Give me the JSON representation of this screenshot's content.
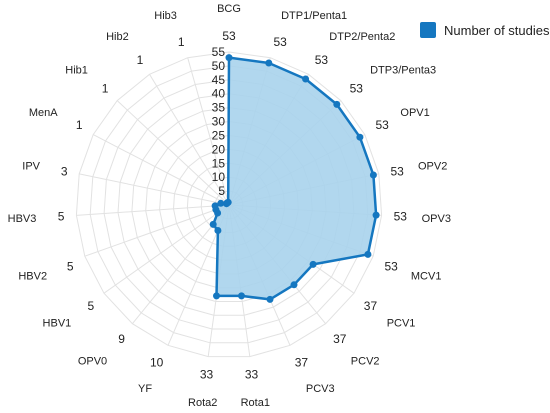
{
  "chart_data": {
    "type": "radar",
    "title": "",
    "legend": {
      "label": "Number of studies",
      "placement": "top-right"
    },
    "categories": [
      "BCG",
      "DTP1/Penta1",
      "DTP2/Penta2",
      "DTP3/Penta3",
      "OPV1",
      "OPV2",
      "OPV3",
      "MCV1",
      "PCV1",
      "PCV2",
      "PCV3",
      "Rota1",
      "Rota2",
      "YF",
      "OPV0",
      "HBV1",
      "HBV2",
      "HBV3",
      "IPV",
      "MenA",
      "Hib1",
      "Hib2",
      "Hib3"
    ],
    "series": [
      {
        "name": "Number of studies",
        "values": [
          53,
          53,
          53,
          53,
          53,
          53,
          53,
          53,
          37,
          37,
          37,
          33,
          33,
          10,
          9,
          5,
          5,
          5,
          3,
          1,
          1,
          1,
          1
        ]
      }
    ],
    "value_labels": [
      "53",
      "53",
      "53",
      "53",
      "53",
      "53",
      "53",
      "53",
      "37",
      "37",
      "37",
      "33",
      "33",
      "10",
      "9",
      "5",
      "5",
      "5",
      "3",
      "1",
      "1",
      "1",
      "1"
    ],
    "r_ticks": [
      "5",
      "10",
      "15",
      "20",
      "25",
      "30",
      "35",
      "40",
      "45",
      "50",
      "55"
    ],
    "rlim": [
      0,
      55
    ],
    "grid": true
  },
  "colors": {
    "line": "#1577c0",
    "fill": "#a9d3ec",
    "grid": "#e2e2e2",
    "text": "#222222"
  }
}
